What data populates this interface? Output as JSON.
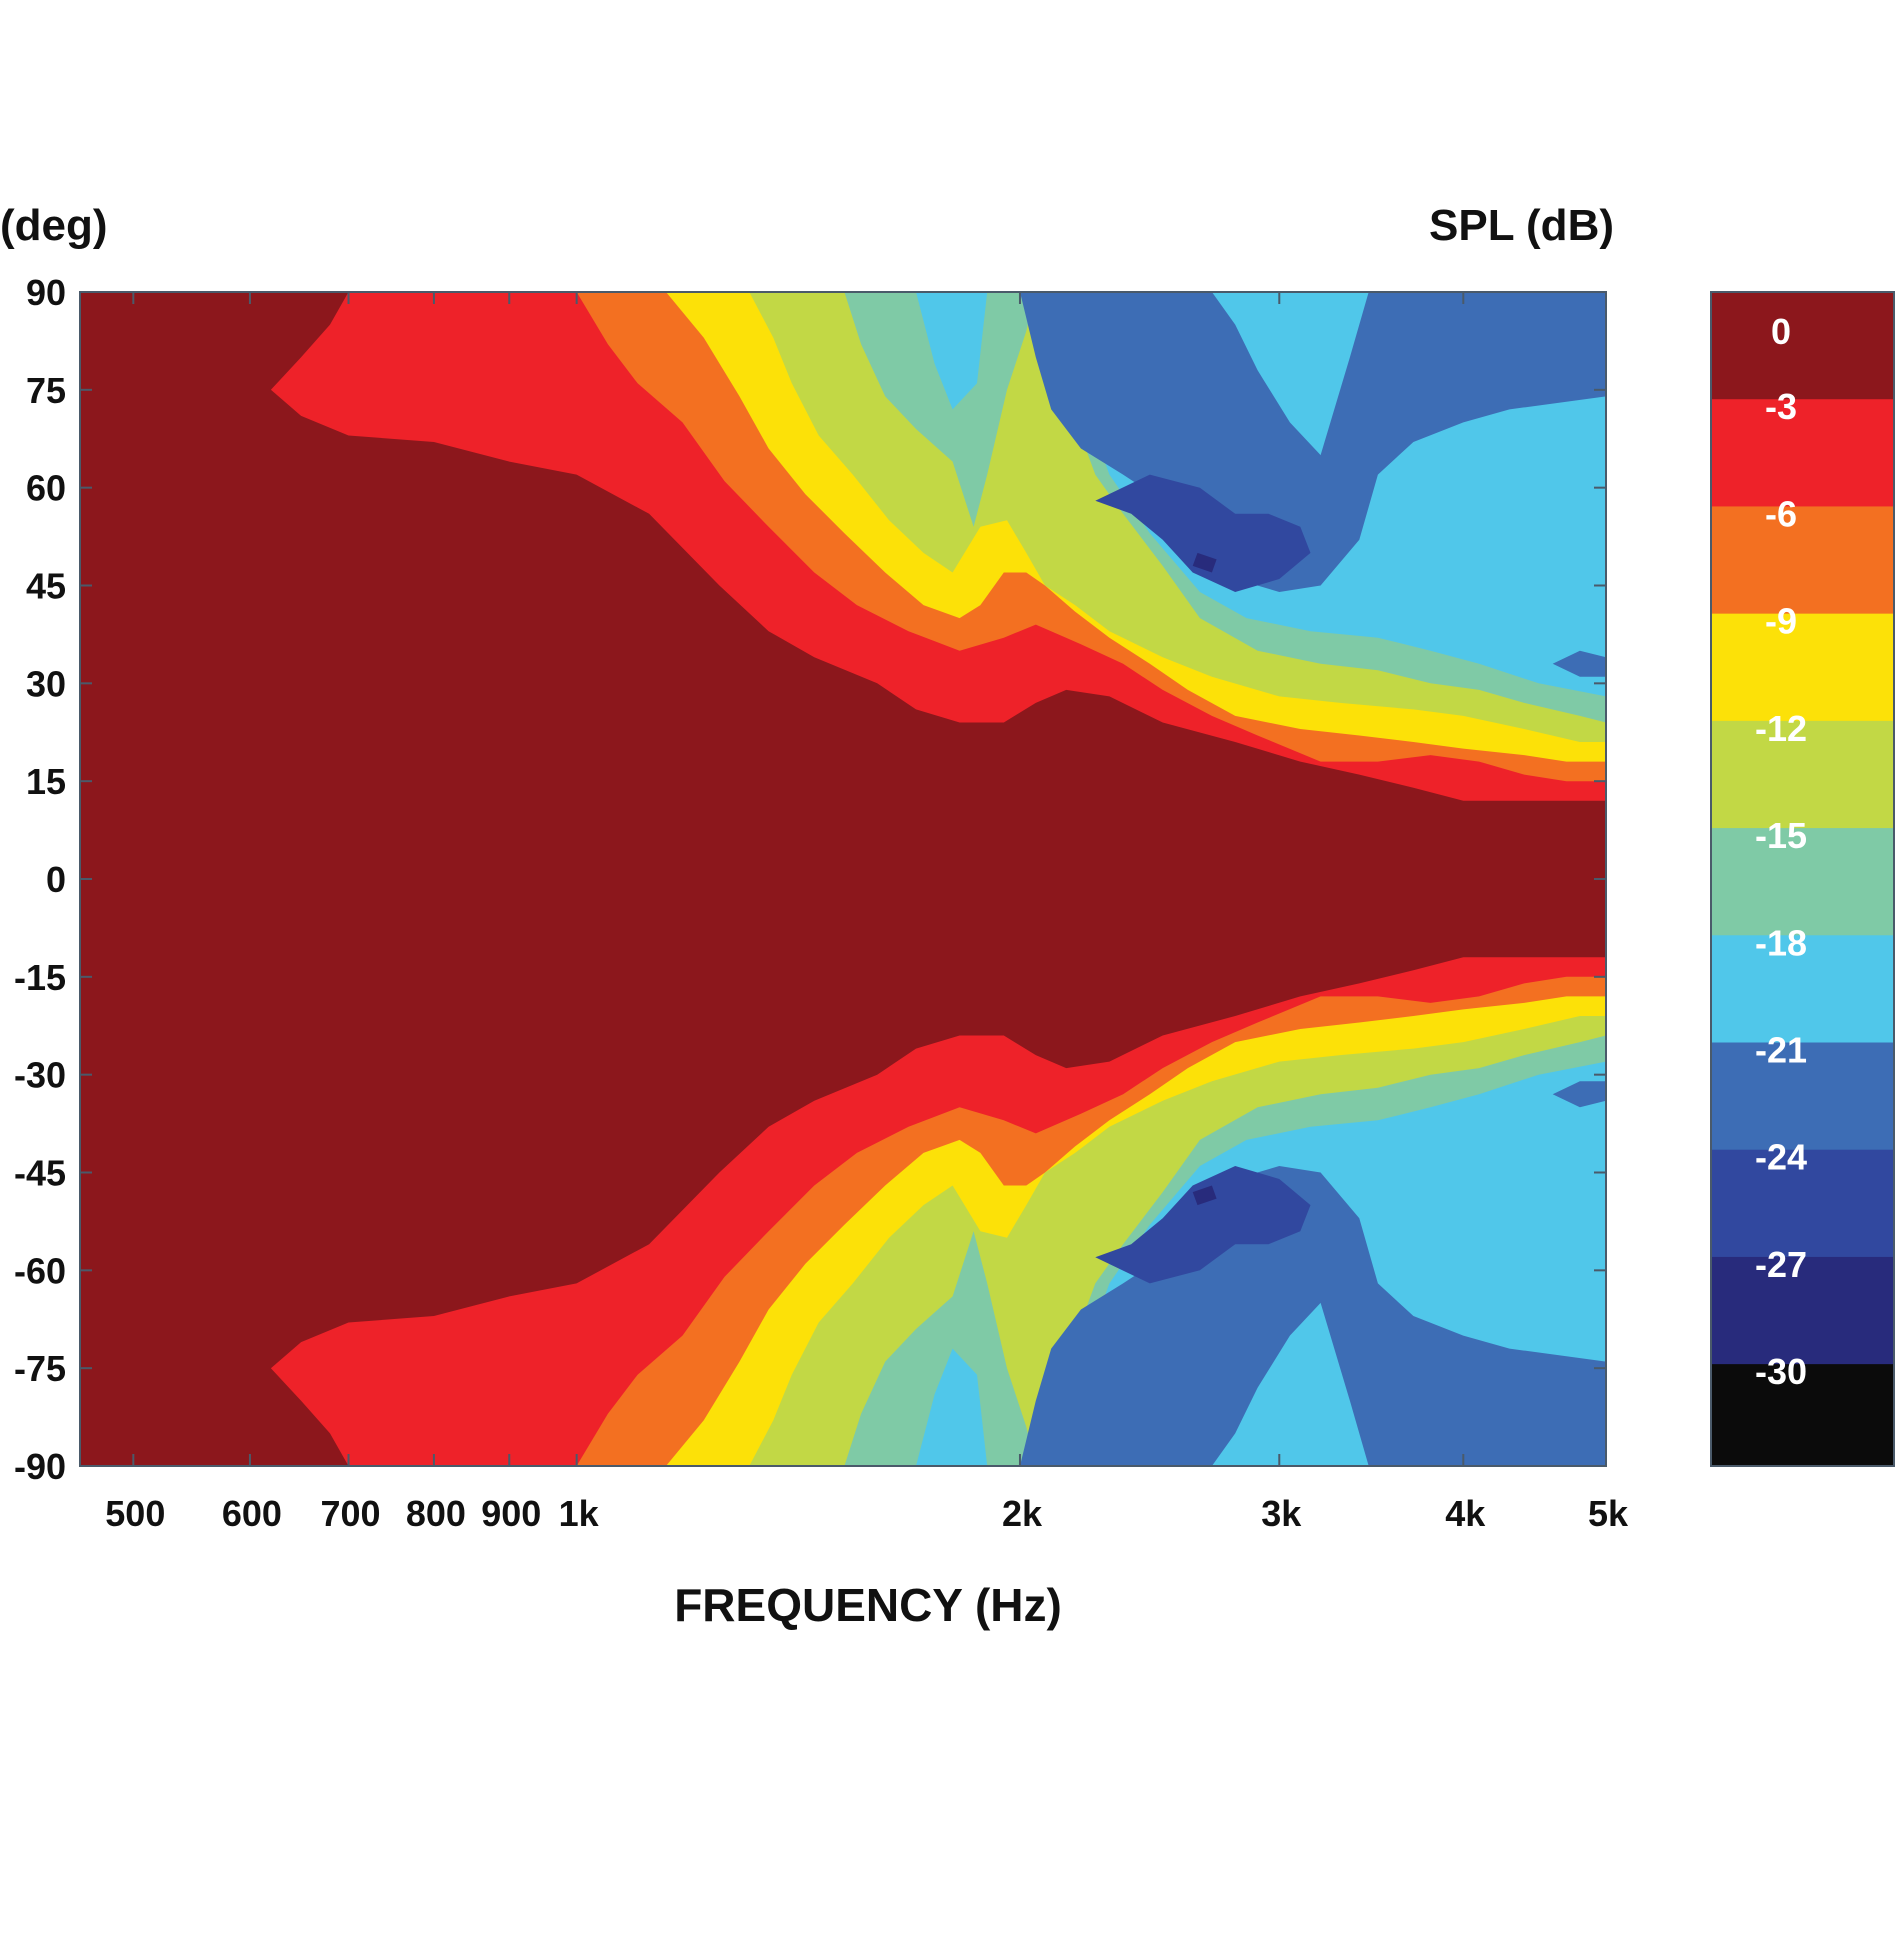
{
  "chart_data": {
    "type": "heatmap",
    "subtype": "contour",
    "title": "",
    "xlabel": "FREQUENCY (Hz)",
    "ylabel": "(deg)",
    "colorbar_label": "SPL (dB)",
    "x_scale": "log",
    "xlim": [
      460,
      5000
    ],
    "ylim": [
      -90,
      90
    ],
    "x_ticks": [
      {
        "value": 500,
        "label": "500"
      },
      {
        "value": 600,
        "label": "600"
      },
      {
        "value": 700,
        "label": "700"
      },
      {
        "value": 800,
        "label": "800"
      },
      {
        "value": 900,
        "label": "900"
      },
      {
        "value": 1000,
        "label": "1k"
      },
      {
        "value": 2000,
        "label": "2k"
      },
      {
        "value": 3000,
        "label": "3k"
      },
      {
        "value": 4000,
        "label": "4k"
      },
      {
        "value": 5000,
        "label": "5k"
      }
    ],
    "y_ticks": [
      90,
      75,
      60,
      45,
      30,
      15,
      0,
      -15,
      -30,
      -45,
      -60,
      -75,
      -90
    ],
    "levels": [
      {
        "label": "0",
        "min": -3,
        "max": 0,
        "color": "#8c171c"
      },
      {
        "label": "-3",
        "min": -6,
        "max": -3,
        "color": "#ee2229"
      },
      {
        "label": "-6",
        "min": -9,
        "max": -6,
        "color": "#f37021"
      },
      {
        "label": "-9",
        "min": -12,
        "max": -9,
        "color": "#fce108"
      },
      {
        "label": "-12",
        "min": -15,
        "max": -12,
        "color": "#c2d845"
      },
      {
        "label": "-15",
        "min": -18,
        "max": -15,
        "color": "#7fcaa6"
      },
      {
        "label": "-18",
        "min": -21,
        "max": -18,
        "color": "#50c7ea"
      },
      {
        "label": "-21",
        "min": -24,
        "max": -21,
        "color": "#3d6db5"
      },
      {
        "label": "-24",
        "min": -27,
        "max": -24,
        "color": "#31489f"
      },
      {
        "label": "-27",
        "min": -30,
        "max": -27,
        "color": "#282b7c"
      },
      {
        "label": "-30",
        "min": -33,
        "max": -30,
        "color": "#0b0b0b"
      }
    ],
    "symmetric_about_zero": true,
    "contours": [
      {
        "level": "-3",
        "boundary": [
          [
            460,
            90
          ],
          [
            700,
            90
          ],
          [
            680,
            85
          ],
          [
            650,
            80
          ],
          [
            620,
            75
          ],
          [
            650,
            71
          ],
          [
            700,
            68
          ],
          [
            800,
            67
          ],
          [
            900,
            64
          ],
          [
            1000,
            62
          ],
          [
            1120,
            56
          ],
          [
            1250,
            45
          ],
          [
            1350,
            38
          ],
          [
            1450,
            34
          ],
          [
            1600,
            30
          ],
          [
            1700,
            26
          ],
          [
            1820,
            24
          ],
          [
            1950,
            24
          ],
          [
            2050,
            27
          ],
          [
            2150,
            29
          ],
          [
            2300,
            28
          ],
          [
            2500,
            24
          ],
          [
            2800,
            21
          ],
          [
            3100,
            18
          ],
          [
            3400,
            16
          ],
          [
            3700,
            14
          ],
          [
            4000,
            12
          ],
          [
            4400,
            12
          ],
          [
            4700,
            12
          ],
          [
            5000,
            12
          ]
        ]
      },
      {
        "level": "-6",
        "boundary": [
          [
            1000,
            90
          ],
          [
            1050,
            82
          ],
          [
            1100,
            76
          ],
          [
            1180,
            70
          ],
          [
            1260,
            61
          ],
          [
            1350,
            54
          ],
          [
            1450,
            47
          ],
          [
            1550,
            42
          ],
          [
            1680,
            38
          ],
          [
            1820,
            35
          ],
          [
            1950,
            37
          ],
          [
            2050,
            39
          ],
          [
            2200,
            36
          ],
          [
            2350,
            33
          ],
          [
            2500,
            29
          ],
          [
            2700,
            25
          ],
          [
            2900,
            22
          ],
          [
            3200,
            18
          ],
          [
            3500,
            18
          ],
          [
            3800,
            19
          ],
          [
            4100,
            18
          ],
          [
            4400,
            16
          ],
          [
            4700,
            15
          ],
          [
            5000,
            15
          ]
        ]
      },
      {
        "level": "-9",
        "boundary": [
          [
            1150,
            90
          ],
          [
            1220,
            83
          ],
          [
            1290,
            74
          ],
          [
            1350,
            66
          ],
          [
            1430,
            59
          ],
          [
            1520,
            53
          ],
          [
            1620,
            47
          ],
          [
            1720,
            42
          ],
          [
            1820,
            40
          ],
          [
            1880,
            42
          ],
          [
            1950,
            47
          ],
          [
            2020,
            47
          ],
          [
            2080,
            45
          ],
          [
            2180,
            41
          ],
          [
            2300,
            37
          ],
          [
            2450,
            33
          ],
          [
            2600,
            29
          ],
          [
            2800,
            25
          ],
          [
            3100,
            23
          ],
          [
            3400,
            22
          ],
          [
            3700,
            21
          ],
          [
            4000,
            20
          ],
          [
            4400,
            19
          ],
          [
            4700,
            18
          ],
          [
            5000,
            18
          ]
        ]
      },
      {
        "level": "-12",
        "boundary": [
          [
            1310,
            90
          ],
          [
            1360,
            83
          ],
          [
            1400,
            76
          ],
          [
            1460,
            68
          ],
          [
            1540,
            62
          ],
          [
            1630,
            55
          ],
          [
            1720,
            50
          ],
          [
            1800,
            47
          ],
          [
            1880,
            54
          ],
          [
            1960,
            55
          ],
          [
            2020,
            50
          ],
          [
            2080,
            45
          ],
          [
            2180,
            42
          ],
          [
            2300,
            38
          ],
          [
            2500,
            34
          ],
          [
            2700,
            31
          ],
          [
            3000,
            28
          ],
          [
            3300,
            27
          ],
          [
            3700,
            26
          ],
          [
            4000,
            25
          ],
          [
            4400,
            23
          ],
          [
            4800,
            21
          ],
          [
            5000,
            21
          ]
        ]
      },
      {
        "level": "-15",
        "boundary": [
          [
            1520,
            90
          ],
          [
            1560,
            82
          ],
          [
            1620,
            74
          ],
          [
            1700,
            69
          ],
          [
            1800,
            64
          ],
          [
            1860,
            54
          ],
          [
            1900,
            62
          ],
          [
            1960,
            75
          ],
          [
            2020,
            84
          ],
          [
            2050,
            90
          ],
          [
            2100,
            90
          ],
          [
            2150,
            80
          ],
          [
            2200,
            68
          ],
          [
            2250,
            62
          ],
          [
            2350,
            56
          ],
          [
            2500,
            48
          ],
          [
            2650,
            40
          ],
          [
            2900,
            35
          ],
          [
            3200,
            33
          ],
          [
            3500,
            32
          ],
          [
            3800,
            30
          ],
          [
            4100,
            29
          ],
          [
            4400,
            27
          ],
          [
            4800,
            25
          ],
          [
            5000,
            24
          ]
        ]
      },
      {
        "level": "-18",
        "boundary": [
          [
            1700,
            90
          ],
          [
            1750,
            79
          ],
          [
            1800,
            72
          ],
          [
            1870,
            76
          ],
          [
            1900,
            90
          ],
          [
            2140,
            90
          ],
          [
            2160,
            82
          ],
          [
            2200,
            74
          ],
          [
            2300,
            62
          ],
          [
            2450,
            53
          ],
          [
            2650,
            44
          ],
          [
            2850,
            40
          ],
          [
            3150,
            38
          ],
          [
            3500,
            37
          ],
          [
            3800,
            35
          ],
          [
            4100,
            33
          ],
          [
            4500,
            30
          ],
          [
            5000,
            28
          ]
        ]
      }
    ]
  }
}
